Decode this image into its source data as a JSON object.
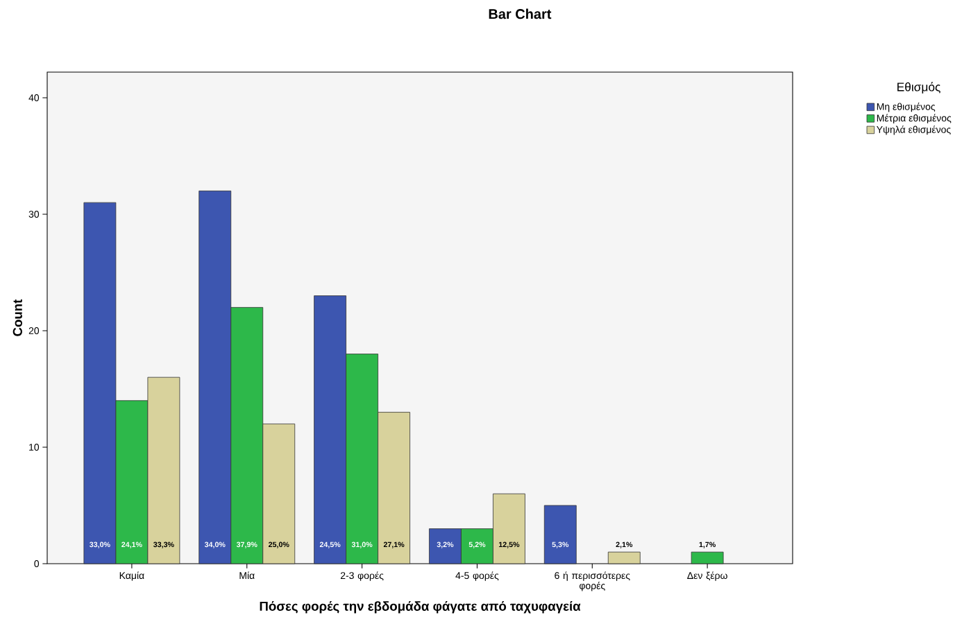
{
  "chart_data": {
    "type": "bar",
    "title": "Bar Chart",
    "xlabel": "Πόσες φορές την εβδομάδα φάγατε από ταχυφαγεία",
    "ylabel": "Count",
    "legend_title": "Εθισμός",
    "legend": "top right",
    "categories": [
      "Καμία",
      "Μία",
      "2-3 φορές",
      "4-5 φορές",
      "6 ή περισσότερες φορές",
      "Δεν ξέρω"
    ],
    "ylim": [
      0,
      42.2
    ],
    "yticks": [
      0,
      10,
      20,
      30,
      40
    ],
    "series": [
      {
        "name": "Μη εθισμένος",
        "color": "#3d56b0",
        "values": [
          31,
          32,
          23,
          3,
          5,
          null
        ]
      },
      {
        "name": "Μέτρια εθισμένος",
        "color": "#2db84a",
        "values": [
          14,
          22,
          18,
          3,
          null,
          1
        ]
      },
      {
        "name": "Υψηλά εθισμένος",
        "color": "#d8d29c",
        "values": [
          16,
          12,
          13,
          6,
          1,
          null
        ]
      }
    ],
    "annotations": [
      "33,0%",
      "24,1%",
      "33,3%",
      "34,0%",
      "37,9%",
      "25,0%",
      "24,5%",
      "31,0%",
      "27,1%",
      "3,2%",
      "5,2%",
      "12,5%",
      "5,3%",
      "2,1%",
      "1,7%"
    ]
  }
}
